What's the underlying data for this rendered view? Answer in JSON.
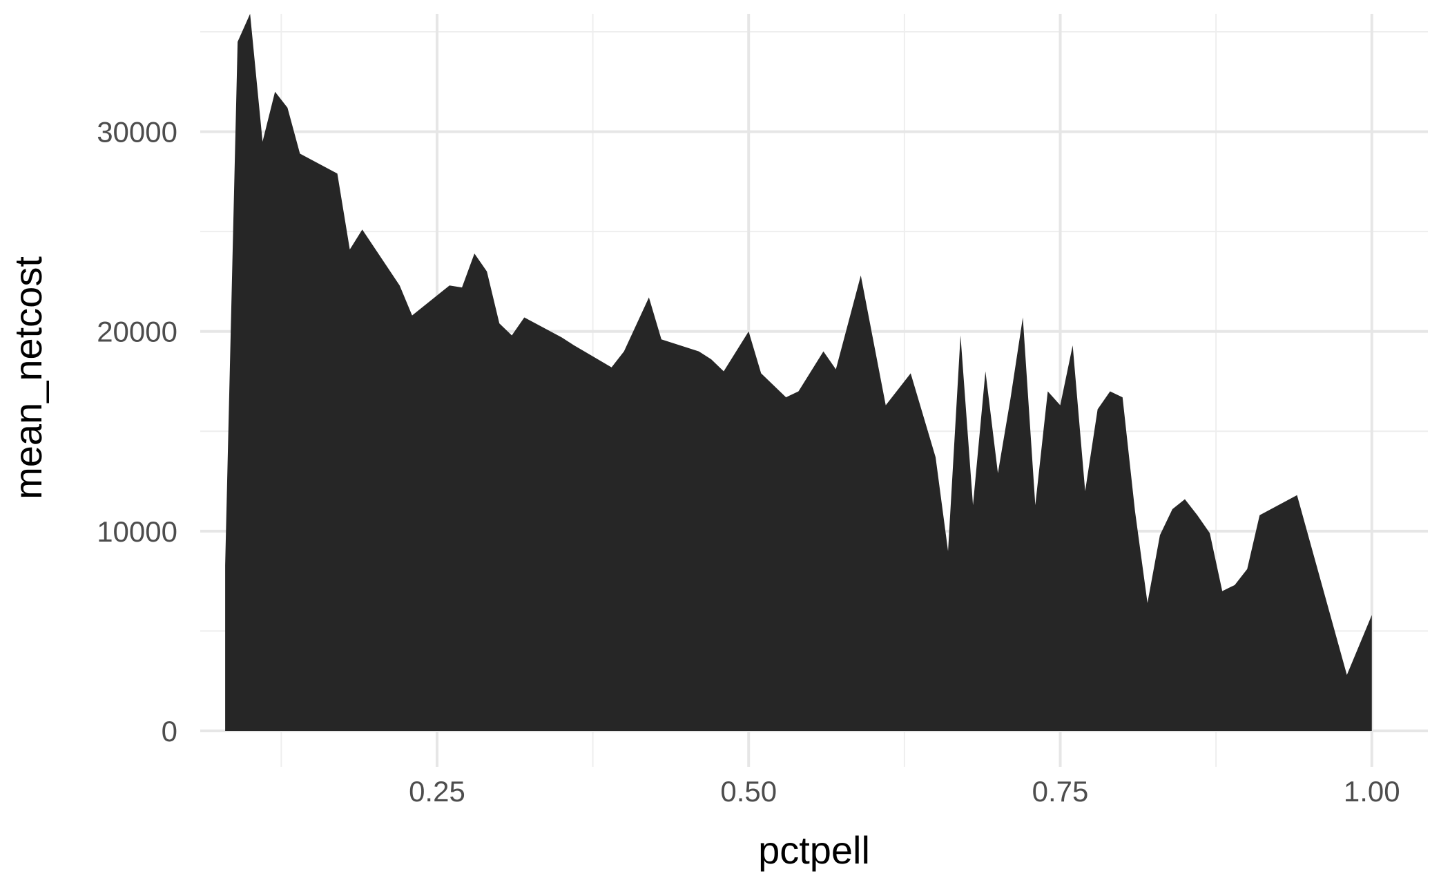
{
  "chart_data": {
    "type": "area",
    "xlabel": "pctpell",
    "ylabel": "mean_netcost",
    "xlim": [
      0.06,
      1.045
    ],
    "ylim": [
      -1800,
      35900
    ],
    "x_ticks": [
      0.25,
      0.5,
      0.75,
      1.0
    ],
    "x_tick_labels": [
      "0.25",
      "0.50",
      "0.75",
      "1.00"
    ],
    "y_ticks": [
      0,
      10000,
      20000,
      30000
    ],
    "y_tick_labels": [
      "0",
      "10000",
      "20000",
      "30000"
    ],
    "grid": true,
    "fill_color": "#262626",
    "x": [
      0.08,
      0.09,
      0.1,
      0.11,
      0.12,
      0.13,
      0.14,
      0.17,
      0.18,
      0.19,
      0.22,
      0.23,
      0.26,
      0.27,
      0.28,
      0.29,
      0.3,
      0.31,
      0.32,
      0.35,
      0.36,
      0.39,
      0.4,
      0.42,
      0.43,
      0.46,
      0.47,
      0.48,
      0.5,
      0.51,
      0.53,
      0.54,
      0.56,
      0.57,
      0.59,
      0.61,
      0.63,
      0.65,
      0.66,
      0.67,
      0.68,
      0.69,
      0.7,
      0.71,
      0.72,
      0.73,
      0.74,
      0.75,
      0.76,
      0.77,
      0.78,
      0.79,
      0.8,
      0.81,
      0.82,
      0.83,
      0.84,
      0.85,
      0.86,
      0.87,
      0.88,
      0.89,
      0.9,
      0.91,
      0.94,
      0.98,
      1.0
    ],
    "values": [
      8300,
      34500,
      35900,
      29500,
      32000,
      31200,
      28900,
      27900,
      24100,
      25100,
      22300,
      20800,
      22300,
      22200,
      23900,
      23000,
      20400,
      19800,
      20700,
      19700,
      19300,
      18200,
      19000,
      21700,
      19600,
      19000,
      18600,
      18000,
      20000,
      17900,
      16700,
      17000,
      19000,
      18100,
      22800,
      16300,
      17900,
      13700,
      9000,
      19800,
      11300,
      18000,
      12900,
      16600,
      20700,
      11300,
      17000,
      16300,
      19300,
      12000,
      16100,
      17000,
      16700,
      11000,
      6400,
      9800,
      11100,
      11600,
      10800,
      9900,
      7000,
      7300,
      8100,
      10800,
      11800,
      2800,
      5800
    ]
  }
}
